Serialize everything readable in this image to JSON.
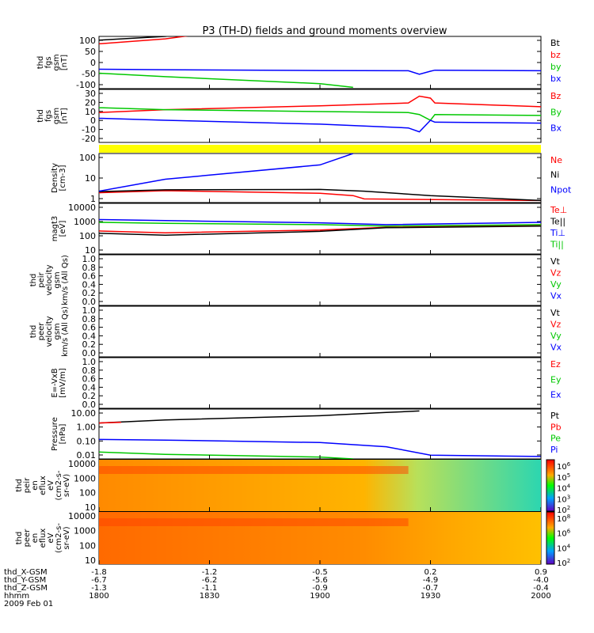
{
  "title": "P3 (TH-D) fields and ground moments overview",
  "colors": {
    "black": "#000000",
    "red": "#ff0000",
    "green": "#00c800",
    "blue": "#0000ff",
    "yellow": "#ffff00"
  },
  "chart_data": [
    {
      "type": "line",
      "panel": "fgs_gsm",
      "ylabel_lines": [
        "thd",
        "fgs",
        "gsm",
        "[nT]"
      ],
      "yticks": [
        "100",
        "50",
        "0",
        "-50",
        "-100"
      ],
      "ylim": [
        -100,
        110
      ],
      "legend": [
        "Bt",
        "bz",
        "by",
        "bx"
      ],
      "series": [
        {
          "name": "Bt",
          "color": "black",
          "x": [
            1800,
            1830,
            1845
          ],
          "y": [
            95,
            110,
            125
          ]
        },
        {
          "name": "bz",
          "color": "red",
          "x": [
            1800,
            1830,
            1845
          ],
          "y": [
            80,
            100,
            118
          ]
        },
        {
          "name": "by",
          "color": "green",
          "x": [
            1800,
            1830,
            1900,
            1915
          ],
          "y": [
            -38,
            -52,
            -80,
            -95
          ]
        },
        {
          "name": "bx",
          "color": "blue",
          "x": [
            1800,
            1830,
            1900,
            1940,
            1945,
            1950,
            1952,
            2000
          ],
          "y": [
            -22,
            -24,
            -27,
            -28,
            -42,
            -30,
            -26,
            -28
          ]
        }
      ]
    },
    {
      "type": "line",
      "panel": "fgs_gse_zoom",
      "ylabel_lines": [
        "thd",
        "fgs",
        "gsm",
        "[nT]"
      ],
      "yticks": [
        "30",
        "20",
        "10",
        "0",
        "-10",
        "-20"
      ],
      "ylim": [
        -25,
        30
      ],
      "legend": [
        "Bz",
        "By",
        "Bx"
      ],
      "series": [
        {
          "name": "Bz",
          "color": "red",
          "x": [
            1800,
            1830,
            1900,
            1940,
            1945,
            1950,
            1952,
            2000
          ],
          "y": [
            6,
            9,
            13,
            16,
            23,
            21,
            16,
            12
          ]
        },
        {
          "name": "By",
          "color": "green",
          "x": [
            1800,
            1830,
            1900,
            1940,
            1945,
            1950,
            1952,
            2000
          ],
          "y": [
            11,
            9,
            7,
            6,
            4,
            -2,
            4,
            3
          ]
        },
        {
          "name": "Bx",
          "color": "blue",
          "x": [
            1800,
            1830,
            1900,
            1940,
            1945,
            1950,
            1952,
            2000
          ],
          "y": [
            0,
            -2,
            -6,
            -10,
            -14,
            -2,
            -4,
            -5
          ]
        }
      ]
    },
    {
      "type": "line",
      "panel": "density",
      "ylabel_lines": [
        "Density",
        "[cm-3]"
      ],
      "yticks": [
        "100",
        "10",
        "1"
      ],
      "ylim": [
        0.3,
        300
      ],
      "log": true,
      "legend": [
        "Ne",
        "Ni",
        "Npot"
      ],
      "series": [
        {
          "name": "Ne",
          "color": "red",
          "x": [
            1800,
            1830,
            1900,
            1915,
            1920,
            2000
          ],
          "y": [
            1.2,
            1.6,
            1.1,
            0.8,
            0.5,
            0.4
          ]
        },
        {
          "name": "Ni",
          "color": "black",
          "x": [
            1800,
            1830,
            1900,
            1920,
            1950,
            2000
          ],
          "y": [
            1.4,
            1.8,
            1.9,
            1.5,
            0.8,
            0.4
          ]
        },
        {
          "name": "Npot",
          "color": "blue",
          "x": [
            1800,
            1830,
            1900,
            1915
          ],
          "y": [
            1.5,
            8,
            60,
            300
          ]
        }
      ]
    },
    {
      "type": "line",
      "panel": "temperature",
      "ylabel_lines": [
        "magt3",
        "[eV]"
      ],
      "yticks": [
        "10000",
        "1000",
        "100",
        "10"
      ],
      "ylim": [
        10,
        10000
      ],
      "log": true,
      "legend": [
        "Te⊥",
        "Te||",
        "Ti⊥",
        "Ti||"
      ],
      "series": [
        {
          "name": "Te⊥",
          "color": "red",
          "x": [
            1800,
            1830,
            1900,
            1930,
            2000
          ],
          "y": [
            230,
            180,
            260,
            380,
            500
          ]
        },
        {
          "name": "Te||",
          "color": "black",
          "x": [
            1800,
            1830,
            1900,
            1930,
            2000
          ],
          "y": [
            170,
            130,
            220,
            360,
            450
          ]
        },
        {
          "name": "Ti⊥",
          "color": "blue",
          "x": [
            1800,
            1830,
            1900,
            1930,
            2000
          ],
          "y": [
            1100,
            950,
            700,
            550,
            750
          ]
        },
        {
          "name": "Ti||",
          "color": "green",
          "x": [
            1800,
            1830,
            1900,
            1930,
            2000
          ],
          "y": [
            750,
            650,
            550,
            450,
            550
          ]
        }
      ]
    },
    {
      "type": "line",
      "panel": "peir_velocity",
      "ylabel_lines": [
        "thd",
        "peir",
        "velocity",
        "gsm",
        "km/s (All Qs)"
      ],
      "yticks": [
        "1.0",
        "0.8",
        "0.6",
        "0.4",
        "0.2",
        "0.0"
      ],
      "ylim": [
        0,
        1
      ],
      "legend": [
        "Vt",
        "Vz",
        "Vy",
        "Vx"
      ],
      "series": []
    },
    {
      "type": "line",
      "panel": "peer_velocity",
      "ylabel_lines": [
        "thd",
        "peer",
        "velocity",
        "gsm",
        "km/s (All Qs)"
      ],
      "yticks": [
        "1.0",
        "0.8",
        "0.6",
        "0.4",
        "0.2",
        "0.0"
      ],
      "ylim": [
        0,
        1
      ],
      "legend": [
        "Vt",
        "Vz",
        "Vy",
        "Vx"
      ],
      "series": []
    },
    {
      "type": "line",
      "panel": "efield",
      "ylabel_lines": [
        "E=-VxB",
        "[mV/m]"
      ],
      "yticks": [
        "1.0",
        "0.8",
        "0.6",
        "0.4",
        "0.2",
        "0.0"
      ],
      "ylim": [
        0,
        1
      ],
      "legend": [
        "Ez",
        "Ey",
        "Ex"
      ],
      "series": []
    },
    {
      "type": "line",
      "panel": "pressure",
      "ylabel_lines": [
        "Pressure",
        "[nPa]"
      ],
      "yticks": [
        "10.00",
        "1.00",
        "0.10",
        "0.01"
      ],
      "ylim": [
        0.008,
        30
      ],
      "log": true,
      "legend": [
        "Pt",
        "Pb",
        "Pe",
        "Pi"
      ],
      "series": [
        {
          "name": "Pt",
          "color": "black",
          "x": [
            1800,
            1830,
            1900,
            1930,
            1945
          ],
          "y": [
            3,
            5,
            10,
            17,
            22
          ]
        },
        {
          "name": "Pb",
          "color": "red",
          "x": [
            1800,
            1810
          ],
          "y": [
            3,
            3.4
          ]
        },
        {
          "name": "Pe",
          "color": "green",
          "x": [
            1800,
            1830,
            1900,
            1915
          ],
          "y": [
            0.025,
            0.017,
            0.011,
            0.008
          ]
        },
        {
          "name": "Pi",
          "color": "blue",
          "x": [
            1800,
            1830,
            1900,
            1930,
            1950,
            2000
          ],
          "y": [
            0.2,
            0.18,
            0.12,
            0.06,
            0.015,
            0.012
          ]
        }
      ]
    },
    {
      "type": "heatmap",
      "panel": "peir_spectrum",
      "ylabel_lines": [
        "thd",
        "peir",
        "en",
        "eflux",
        "eV",
        "(cm2-s-",
        "sr-eV)"
      ],
      "yticks": [
        "10000",
        "1000",
        "100",
        "10"
      ],
      "colorbar_ticks": [
        "10^6",
        "10^5",
        "10^4",
        "10^3",
        "10^2"
      ]
    },
    {
      "type": "heatmap",
      "panel": "peer_spectrum",
      "ylabel_lines": [
        "thd",
        "peer",
        "en",
        "eflux",
        "eV",
        "(cm2-s-",
        "sr-eV)"
      ],
      "yticks": [
        "10000",
        "1000",
        "100",
        "10"
      ],
      "colorbar_ticks": [
        "10^8",
        "10^6",
        "10^4",
        "10^2"
      ]
    }
  ],
  "x_axis": {
    "rows": [
      {
        "label": "thd_X-GSM",
        "values": [
          "-1.8",
          "-1.2",
          "-0.5",
          "0.2",
          "0.9"
        ]
      },
      {
        "label": "thd_Y-GSM",
        "values": [
          "-6.7",
          "-6.2",
          "-5.6",
          "-4.9",
          "-4.0"
        ]
      },
      {
        "label": "thd_Z-GSM",
        "values": [
          "-1.3",
          "-1.1",
          "-0.9",
          "-0.7",
          "-0.4"
        ]
      },
      {
        "label": "hhmm",
        "values": [
          "1800",
          "1830",
          "1900",
          "1930",
          "2000"
        ]
      }
    ],
    "date": "2009 Feb 01"
  }
}
